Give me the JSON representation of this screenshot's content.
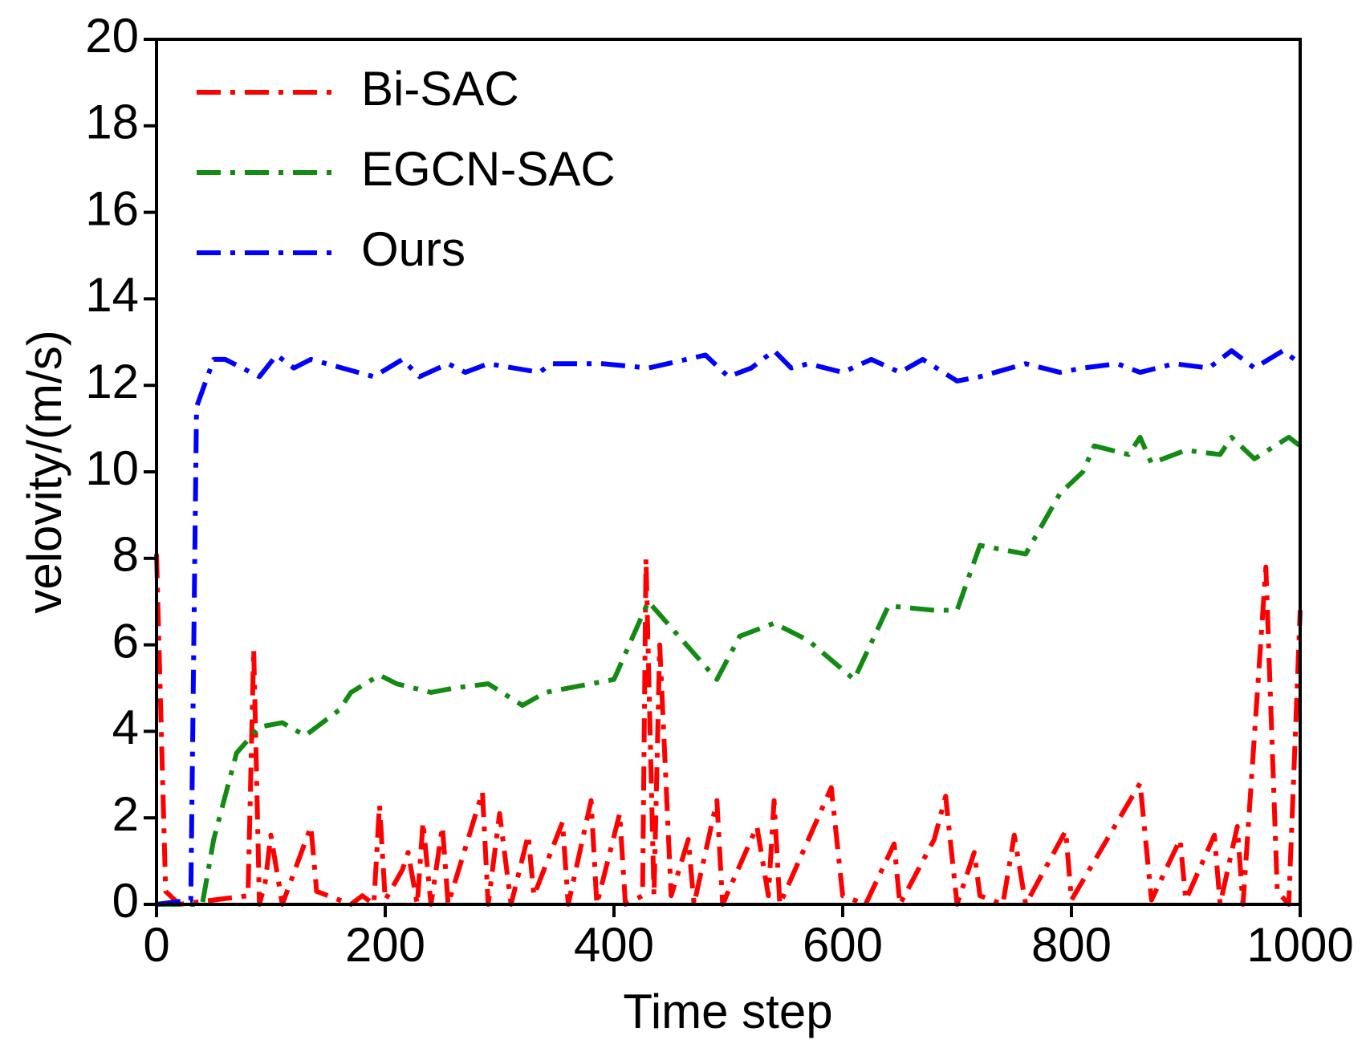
{
  "chart_data": {
    "type": "line",
    "xlabel": "Time step",
    "ylabel": "velovity/(m/s)",
    "xlim": [
      0,
      1000
    ],
    "xticks": [
      0,
      200,
      400,
      600,
      800,
      1000
    ],
    "ylim": [
      0,
      20
    ],
    "yticks": [
      0,
      2,
      4,
      6,
      8,
      10,
      12,
      14,
      16,
      18,
      20
    ],
    "legend": "upper left",
    "series": [
      {
        "name": "Bi-SAC",
        "color": "#ff0000",
        "x": [
          0,
          8,
          20,
          80,
          85,
          90,
          95,
          100,
          110,
          135,
          140,
          170,
          180,
          190,
          195,
          200,
          215,
          220,
          228,
          233,
          240,
          250,
          255,
          285,
          290,
          300,
          310,
          325,
          330,
          355,
          360,
          380,
          385,
          405,
          410,
          425,
          428,
          435,
          440,
          450,
          465,
          470,
          490,
          495,
          525,
          535,
          540,
          545,
          590,
          600,
          620,
          645,
          650,
          680,
          690,
          700,
          715,
          720,
          740,
          750,
          760,
          795,
          800,
          860,
          870,
          895,
          900,
          925,
          930,
          945,
          950,
          970,
          980,
          990,
          1000
        ],
        "values": [
          8.1,
          0.3,
          0,
          0.2,
          5.9,
          0,
          0.5,
          1.6,
          0,
          1.8,
          0.3,
          0,
          0.2,
          0,
          2.3,
          0.1,
          0.8,
          1.2,
          0,
          1.9,
          0,
          1.8,
          0,
          2.6,
          0,
          2.1,
          0,
          1.6,
          0.2,
          1.9,
          0,
          2.4,
          0,
          2.1,
          0,
          0.2,
          8.0,
          0.2,
          6.0,
          0.2,
          1.5,
          0,
          2.4,
          0,
          1.8,
          0.2,
          2.4,
          0,
          2.7,
          0.2,
          0,
          1.4,
          0,
          1.5,
          2.5,
          0,
          1.2,
          0.2,
          0,
          1.6,
          0,
          1.7,
          0.1,
          2.8,
          0.1,
          1.5,
          0.1,
          1.6,
          0,
          1.8,
          0,
          7.8,
          0.3,
          0,
          6.8
        ]
      },
      {
        "name": "EGCN-SAC",
        "color": "#138a13",
        "x": [
          0,
          40,
          50,
          70,
          90,
          110,
          130,
          160,
          170,
          195,
          210,
          240,
          260,
          290,
          320,
          340,
          380,
          400,
          430,
          490,
          510,
          540,
          570,
          610,
          640,
          680,
          700,
          720,
          760,
          790,
          810,
          820,
          850,
          860,
          870,
          900,
          930,
          940,
          960,
          990,
          1000
        ],
        "values": [
          0,
          0,
          1.5,
          3.5,
          4.1,
          4.2,
          3.9,
          4.5,
          4.9,
          5.3,
          5.1,
          4.9,
          5.0,
          5.1,
          4.6,
          4.9,
          5.1,
          5.2,
          7.0,
          5.2,
          6.2,
          6.5,
          6.1,
          5.2,
          6.9,
          6.8,
          6.8,
          8.3,
          8.1,
          9.5,
          10.0,
          10.6,
          10.4,
          10.8,
          10.2,
          10.5,
          10.4,
          10.8,
          10.3,
          10.8,
          10.6
        ]
      },
      {
        "name": "Ours",
        "color": "#0000ff",
        "x": [
          0,
          30,
          35,
          50,
          60,
          90,
          105,
          120,
          135,
          190,
          215,
          230,
          255,
          270,
          290,
          335,
          345,
          390,
          430,
          480,
          500,
          520,
          540,
          555,
          570,
          600,
          625,
          650,
          670,
          700,
          720,
          760,
          790,
          810,
          840,
          860,
          890,
          920,
          940,
          960,
          985,
          1000
        ],
        "values": [
          0,
          0.1,
          11.5,
          12.6,
          12.6,
          12.2,
          12.7,
          12.4,
          12.6,
          12.2,
          12.6,
          12.2,
          12.5,
          12.3,
          12.5,
          12.3,
          12.5,
          12.5,
          12.4,
          12.7,
          12.2,
          12.4,
          12.8,
          12.4,
          12.5,
          12.3,
          12.6,
          12.3,
          12.6,
          12.1,
          12.2,
          12.5,
          12.3,
          12.4,
          12.5,
          12.3,
          12.5,
          12.4,
          12.8,
          12.4,
          12.8,
          12.5
        ]
      }
    ]
  }
}
